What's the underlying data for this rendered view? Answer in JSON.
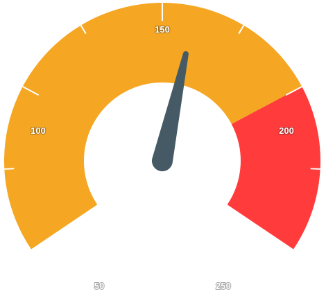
{
  "chart_data": {
    "type": "gauge",
    "min": 50,
    "max": 250,
    "value": 160,
    "ticks": [
      50,
      100,
      150,
      200,
      250
    ],
    "tick_labels": [
      "50",
      "100",
      "150",
      "200",
      "250"
    ],
    "bands": [
      {
        "from": 50,
        "to": 200,
        "color": "#F5A623"
      },
      {
        "from": 200,
        "to": 250,
        "color": "#FF3B3B"
      }
    ],
    "needle_color": "#455A64",
    "tick_color": "#ffffff"
  }
}
